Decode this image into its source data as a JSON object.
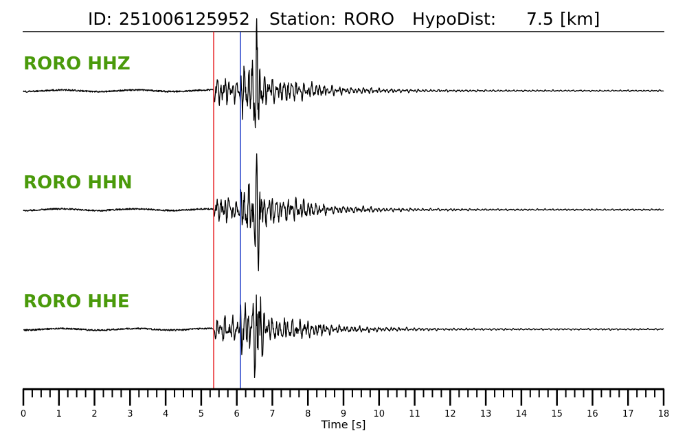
{
  "chart_data": {
    "type": "line",
    "title": {
      "id_label": "ID:",
      "id_value": "251006125952",
      "station_label": "Station:",
      "station_value": "RORO",
      "dist_label": "HypoDist:",
      "dist_value": "7.5",
      "dist_unit": "[km]"
    },
    "xlabel": "Time [s]",
    "xlim": [
      0,
      18
    ],
    "major_ticks": [
      0,
      1,
      2,
      3,
      4,
      5,
      6,
      7,
      8,
      9,
      10,
      11,
      12,
      13,
      14,
      15,
      16,
      17,
      18
    ],
    "tick_labels": [
      "0",
      "1",
      "2",
      "3",
      "4",
      "5",
      "6",
      "7",
      "8",
      "9",
      "10",
      "11",
      "12",
      "13",
      "14",
      "15",
      "16",
      "17",
      "18"
    ],
    "minor_tick_step": 0.25,
    "grid": false,
    "p_pick_time": 5.35,
    "s_pick_time": 6.1,
    "p_pick_color": "#e8262a",
    "s_pick_color": "#1f3cc8",
    "label_color": "#4a9a0b",
    "trace_color": "#000000",
    "channels": [
      {
        "name": "RORO HHZ",
        "peak_time": 6.55,
        "seed": 11
      },
      {
        "name": "RORO HHN",
        "peak_time": 6.57,
        "seed": 23
      },
      {
        "name": "RORO HHE",
        "peak_time": 6.58,
        "seed": 37
      }
    ]
  }
}
